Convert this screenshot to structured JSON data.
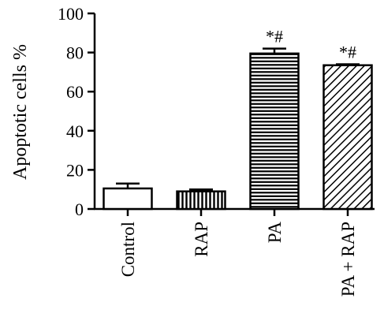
{
  "chart_data": {
    "type": "bar",
    "ylabel": "Apoptotic cells %",
    "ylim": [
      0,
      100
    ],
    "yticks": [
      "0",
      "20",
      "40",
      "60",
      "80",
      "100"
    ],
    "categories": [
      "Control",
      "RAP",
      "PA",
      "PA + RAP"
    ],
    "values": [
      10.5,
      9.0,
      79.5,
      73.5
    ],
    "errors": [
      2.5,
      1.0,
      2.5,
      0.5
    ],
    "patterns": [
      "none",
      "vertical",
      "horizontal",
      "diagonal"
    ],
    "annotations": [
      "",
      "",
      "*#",
      "*#"
    ],
    "grid": false
  }
}
